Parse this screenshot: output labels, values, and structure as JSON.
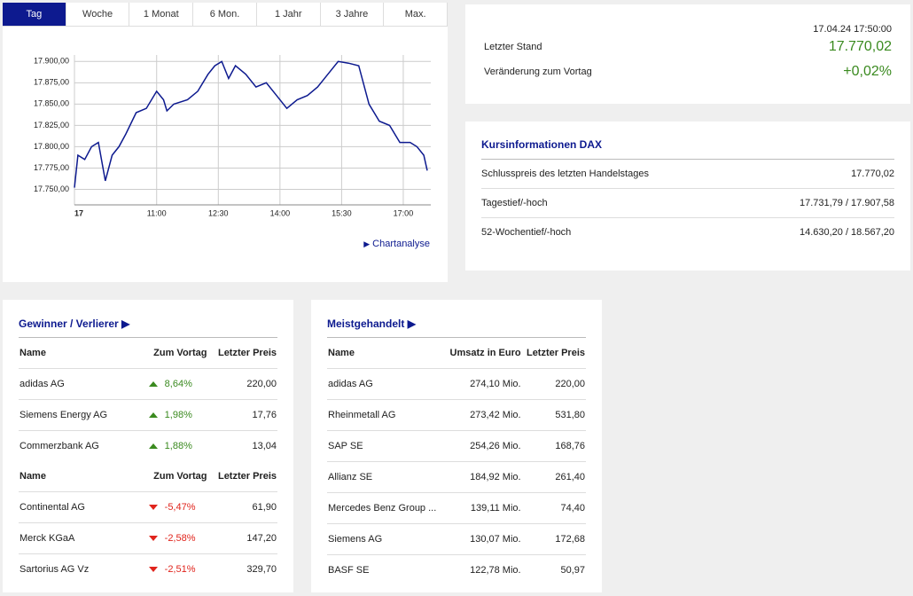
{
  "tabs": [
    "Tag",
    "Woche",
    "1 Monat",
    "6 Mon.",
    "1 Jahr",
    "3 Jahre",
    "Max."
  ],
  "chart_data": {
    "type": "line",
    "color": "#0d1a8f",
    "grid": true,
    "x": [
      "09:00",
      "09:05",
      "09:15",
      "09:25",
      "09:35",
      "09:45",
      "09:55",
      "10:05",
      "10:15",
      "10:30",
      "10:45",
      "11:00",
      "11:10",
      "11:15",
      "11:25",
      "11:45",
      "12:00",
      "12:15",
      "12:25",
      "12:35",
      "12:45",
      "12:55",
      "13:10",
      "13:25",
      "13:40",
      "13:55",
      "14:10",
      "14:25",
      "14:40",
      "14:55",
      "15:10",
      "15:25",
      "15:40",
      "15:55",
      "16:10",
      "16:25",
      "16:40",
      "16:55",
      "17:10",
      "17:20",
      "17:30",
      "17:35"
    ],
    "values": [
      17752,
      17790,
      17785,
      17800,
      17805,
      17760,
      17790,
      17800,
      17815,
      17840,
      17845,
      17865,
      17855,
      17842,
      17850,
      17855,
      17865,
      17885,
      17895,
      17900,
      17880,
      17895,
      17885,
      17870,
      17875,
      17860,
      17845,
      17855,
      17860,
      17870,
      17885,
      17900,
      17898,
      17895,
      17850,
      17830,
      17825,
      17805,
      17805,
      17800,
      17790,
      17772
    ],
    "xlim": [
      "09:00",
      "17:35"
    ],
    "xticks": [
      {
        "value": "09:00",
        "label": "17"
      },
      "11:00",
      "12:30",
      "14:00",
      "15:30",
      "17:00"
    ],
    "ylim": [
      17731.79,
      17907.58
    ],
    "yticks": [
      {
        "value": 17750,
        "label": "17.750,00"
      },
      {
        "value": 17775,
        "label": "17.775,00"
      },
      {
        "value": 17800,
        "label": "17.800,00"
      },
      {
        "value": 17825,
        "label": "17.825,00"
      },
      {
        "value": 17850,
        "label": "17.850,00"
      },
      {
        "value": 17875,
        "label": "17.875,00"
      },
      {
        "value": 17900,
        "label": "17.900,00"
      }
    ]
  },
  "chart_link": "Chartanalyse",
  "quote": {
    "datetime": "17.04.24 17:50:00",
    "rows": [
      [
        "Letzter Stand",
        "17.770,02"
      ],
      [
        "Veränderung zum Vortag",
        "+0,02%"
      ]
    ]
  },
  "kursinfo": {
    "title": "Kursinformationen DAX",
    "rows": [
      [
        "Schlusspreis des letzten Handelstages",
        "17.770,02"
      ],
      [
        "Tagestief/-hoch",
        "17.731,79 / 17.907,58"
      ],
      [
        "52-Wochentief/-hoch",
        "14.630,20 / 18.567,20"
      ]
    ]
  },
  "movers": {
    "title": "Gewinner / Verlierer",
    "gainers": {
      "columns": [
        "Name",
        "Zum Vortag",
        "Letzter Preis"
      ],
      "rows": [
        [
          "adidas AG",
          "8,64%",
          "220,00"
        ],
        [
          "Siemens Energy AG",
          "1,98%",
          "17,76"
        ],
        [
          "Commerzbank AG",
          "1,88%",
          "13,04"
        ]
      ]
    },
    "losers": {
      "columns": [
        "Name",
        "Zum Vortag",
        "Letzter Preis"
      ],
      "rows": [
        [
          "Continental AG",
          "-5,47%",
          "61,90"
        ],
        [
          "Merck KGaA",
          "-2,58%",
          "147,20"
        ],
        [
          "Sartorius AG Vz",
          "-2,51%",
          "329,70"
        ]
      ]
    }
  },
  "most_traded": {
    "title": "Meistgehandelt",
    "columns": [
      "Name",
      "Umsatz in Euro",
      "Letzter Preis"
    ],
    "rows": [
      [
        "adidas AG",
        "274,10 Mio.",
        "220,00"
      ],
      [
        "Rheinmetall AG",
        "273,42 Mio.",
        "531,80"
      ],
      [
        "SAP SE",
        "254,26 Mio.",
        "168,76"
      ],
      [
        "Allianz SE",
        "184,92 Mio.",
        "261,40"
      ],
      [
        "Mercedes Benz Group ...",
        "139,11 Mio.",
        "74,40"
      ],
      [
        "Siemens AG",
        "130,07 Mio.",
        "172,68"
      ],
      [
        "BASF SE",
        "122,78 Mio.",
        "50,97"
      ]
    ]
  }
}
